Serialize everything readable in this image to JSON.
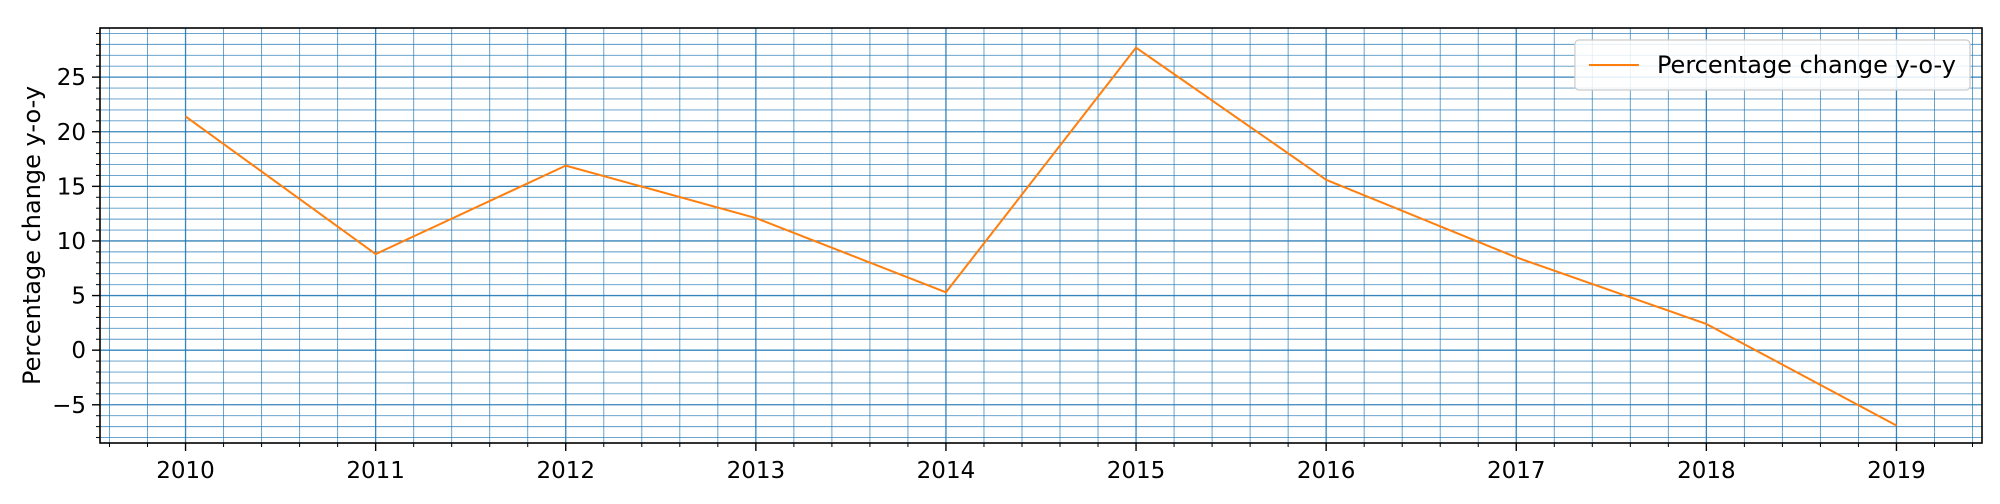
{
  "chart_data": {
    "type": "line",
    "title": "",
    "xlabel": "",
    "ylabel": "Percentage change y-o-y",
    "x": [
      2010,
      2011,
      2012,
      2013,
      2014,
      2015,
      2016,
      2017,
      2018,
      2019
    ],
    "series": [
      {
        "name": "Percentage change y-o-y",
        "values": [
          21.4,
          8.8,
          16.9,
          12.1,
          5.3,
          27.7,
          15.6,
          8.5,
          2.4,
          -6.9
        ],
        "color": "#ff7f0e"
      }
    ],
    "xlim": [
      2009.55,
      2019.45
    ],
    "ylim": [
      -8.5,
      29.5
    ],
    "xticks": [
      2010,
      2011,
      2012,
      2013,
      2014,
      2015,
      2016,
      2017,
      2018,
      2019
    ],
    "xtick_labels": [
      "2010",
      "2011",
      "2012",
      "2013",
      "2014",
      "2015",
      "2016",
      "2017",
      "2018",
      "2019"
    ],
    "yticks": [
      -5,
      0,
      5,
      10,
      15,
      20,
      25
    ],
    "ytick_labels": [
      "−5",
      "0",
      "5",
      "10",
      "15",
      "20",
      "25"
    ],
    "grid": true,
    "grid_minor": true,
    "grid_color": "#1f77b4",
    "legend_position": "top-right"
  }
}
